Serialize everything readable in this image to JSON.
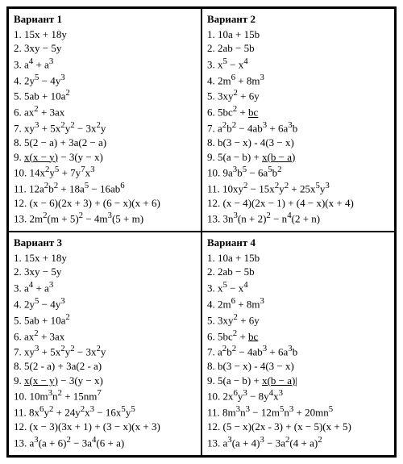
{
  "variants": [
    {
      "title": "Вариант 1",
      "items": [
        {
          "num": "1.",
          "html": "15x + 18y"
        },
        {
          "num": "2.",
          "html": "3xy − 5y"
        },
        {
          "num": "3.",
          "html": "a<sup>4</sup> + a<sup>3</sup>"
        },
        {
          "num": "4.",
          "html": "2y<sup>5</sup> − 4y<sup>3</sup>"
        },
        {
          "num": "5.",
          "html": "5ab + 10a<sup>2</sup>"
        },
        {
          "num": "6.",
          "html": "ax<sup>2</sup> + 3ax"
        },
        {
          "num": "7.",
          "html": "xy<sup>3</sup> + 5x<sup>2</sup>y<sup>2</sup> − 3x<sup>2</sup>y"
        },
        {
          "num": "8.",
          "html": "5(2 − a) + 3a(2 − a)"
        },
        {
          "num": "9.",
          "html": "<span class=\"u\">x(x − y)</span> − 3(y − x)"
        },
        {
          "num": "10.",
          "html": "14x<sup>2</sup>y<sup>5</sup> + 7y<sup>7</sup>x<sup>3</sup>"
        },
        {
          "num": "11.",
          "html": "12a<sup>2</sup>b<sup>2</sup> + 18a<sup>5</sup> − 16ab<sup>6</sup>"
        },
        {
          "num": "12.",
          "html": "(x − 6)(2x + 3) + (6 − x)(x + 6)"
        },
        {
          "num": "13.",
          "html": "2m<sup>2</sup>(m + 5)<sup>2</sup> − 4m<sup>3</sup>(5 + m)"
        }
      ]
    },
    {
      "title": "Вариант 2",
      "items": [
        {
          "num": "1.",
          "html": "10a + 15b"
        },
        {
          "num": "2.",
          "html": "2ab − 5b"
        },
        {
          "num": "3.",
          "html": "x<sup>5</sup> − x<sup>4</sup>"
        },
        {
          "num": "4.",
          "html": "2m<sup>6</sup> + 8m<sup>3</sup>"
        },
        {
          "num": "5.",
          "html": "3xy<sup>2</sup> + 6y"
        },
        {
          "num": "6.",
          "html": "5bc<sup>2</sup> + <span class=\"u\">bc</span>"
        },
        {
          "num": "7.",
          "html": "a<sup>2</sup>b<sup>2</sup> − 4ab<sup>3</sup> + 6a<sup>3</sup>b"
        },
        {
          "num": "8.",
          "html": "b(3 − x) - 4(3 − x)"
        },
        {
          "num": "9.",
          "html": "5(a − b) + <span class=\"u\">x(b − a)</span>"
        },
        {
          "num": "10.",
          "html": "9a<sup>3</sup>b<sup>5</sup> − 6a<sup>5</sup>b<sup>2</sup>"
        },
        {
          "num": "11.",
          "html": "10xy<sup>2</sup> − 15x<sup>2</sup>y<sup>2</sup> + 25x<sup>5</sup>y<sup>3</sup>"
        },
        {
          "num": "12.",
          "html": "(x − 4)(2x − 1) + (4 − x)(x + 4)"
        },
        {
          "num": "13.",
          "html": "3n<sup>3</sup>(n + 2)<sup>2</sup> − n<sup>4</sup>(2 + n)"
        }
      ]
    },
    {
      "title": "Вариант 3",
      "items": [
        {
          "num": "1.",
          "html": "15x + 18y"
        },
        {
          "num": "2.",
          "html": "3xy − 5y"
        },
        {
          "num": "3.",
          "html": "a<sup>4</sup> + a<sup>3</sup>"
        },
        {
          "num": "4.",
          "html": "2y<sup>5</sup> − 4y<sup>3</sup>"
        },
        {
          "num": "5.",
          "html": "5ab + 10a<sup>2</sup>"
        },
        {
          "num": "6.",
          "html": "ax<sup>2</sup> + 3ax"
        },
        {
          "num": "7.",
          "html": "xy<sup>3</sup> + 5x<sup>2</sup>y<sup>2</sup> − 3x<sup>2</sup>y"
        },
        {
          "num": "8.",
          "html": "5(2 - a) + 3a(2 - a)"
        },
        {
          "num": "9.",
          "html": "<span class=\"u\">x(x − y)</span> − 3(y − x)"
        },
        {
          "num": "10.",
          "html": "10m<sup>3</sup>n<sup>2</sup> + 15nm<sup>7</sup>"
        },
        {
          "num": "11.",
          "html": "8x<sup>6</sup>y<sup>2</sup> + 24y<sup>2</sup>x<sup>3</sup> − 16x<sup>5</sup>y<sup>5</sup>"
        },
        {
          "num": "12.",
          "html": "(x − 3)(3x + 1) + (3 − x)(x + 3)"
        },
        {
          "num": "13.",
          "html": "a<sup>3</sup>(a + 6)<sup>2</sup> − 3a<sup>4</sup>(6 + a)"
        }
      ]
    },
    {
      "title": "Вариант 4",
      "items": [
        {
          "num": "1.",
          "html": "10a + 15b"
        },
        {
          "num": "2.",
          "html": "2ab − 5b"
        },
        {
          "num": "3.",
          "html": "x<sup>5</sup> − x<sup>4</sup>"
        },
        {
          "num": "4.",
          "html": "2m<sup>6</sup> + 8m<sup>3</sup>"
        },
        {
          "num": "5.",
          "html": "3xy<sup>2</sup> + 6y"
        },
        {
          "num": "6.",
          "html": "5bc<sup>2</sup> + <span class=\"u\">bc</span>"
        },
        {
          "num": "7.",
          "html": "a<sup>2</sup>b<sup>2</sup> − 4ab<sup>3</sup> + 6a<sup>3</sup>b"
        },
        {
          "num": "8.",
          "html": "b(3 − x) - 4(3 − x)"
        },
        {
          "num": "9.",
          "html": "5(a − b) + <span class=\"u\">x(b − a)</span>|"
        },
        {
          "num": "10.",
          "html": "2x<sup>6</sup>y<sup>3</sup> − 8y<sup>4</sup>x<sup>3</sup>"
        },
        {
          "num": "11.",
          "html": "8m<sup>3</sup>n<sup>3</sup> − 12m<sup>5</sup>n<sup>3</sup> + 20mn<sup>5</sup>"
        },
        {
          "num": "12.",
          "html": "(5 − x)(2x - 3) + (x − 5)(x + 5)"
        },
        {
          "num": "13.",
          "html": "a<sup>3</sup>(a + 4)<sup>3</sup> − 3a<sup>2</sup>(4 + a)<sup>2</sup>"
        }
      ]
    }
  ]
}
